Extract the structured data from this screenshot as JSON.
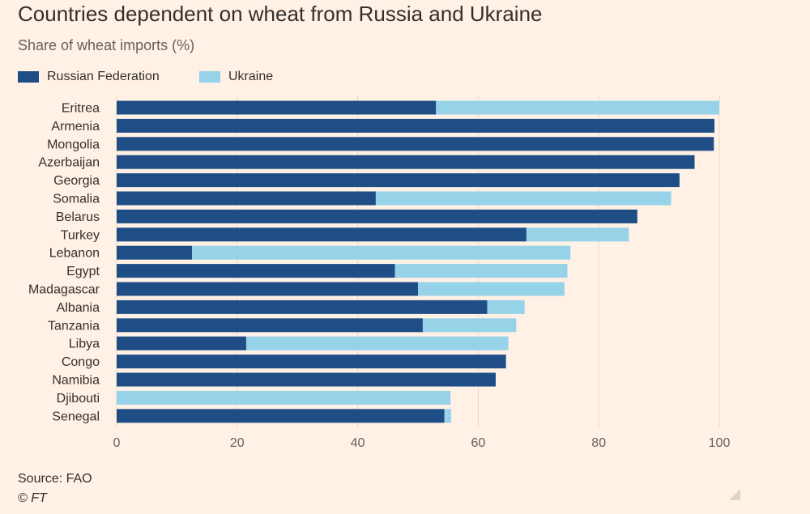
{
  "header": {
    "title": "Countries dependent on wheat from Russia and Ukraine",
    "subtitle": "Share of wheat imports (%)"
  },
  "legend": {
    "items": [
      {
        "label": "Russian Federation",
        "color": "#1f4e87"
      },
      {
        "label": "Ukraine",
        "color": "#96d3e9"
      }
    ]
  },
  "footer": {
    "source": "Source: FAO",
    "credit": "© FT"
  },
  "colors": {
    "background": "#fff1e5",
    "russia": "#1f4e87",
    "ukraine": "#96d3e9",
    "gridline": "#e6d9ce"
  },
  "chart_data": {
    "type": "bar",
    "orientation": "horizontal",
    "stacked": true,
    "title": "Countries dependent on wheat from Russia and Ukraine",
    "subtitle": "Share of wheat imports (%)",
    "xlabel": "",
    "ylabel": "",
    "xlim": [
      0,
      100
    ],
    "xticks": [
      0,
      20,
      40,
      60,
      80,
      100
    ],
    "grid": true,
    "legend_position": "top-left",
    "categories": [
      "Eritrea",
      "Armenia",
      "Mongolia",
      "Azerbaijan",
      "Georgia",
      "Somalia",
      "Belarus",
      "Turkey",
      "Lebanon",
      "Egypt",
      "Madagascar",
      "Albania",
      "Tanzania",
      "Libya",
      "Congo",
      "Namibia",
      "Djibouti",
      "Senegal"
    ],
    "series": [
      {
        "name": "Russian Federation",
        "values": [
          53.0,
          99.2,
          99.1,
          95.9,
          93.4,
          43.0,
          86.4,
          68.0,
          12.5,
          46.2,
          50.0,
          61.5,
          50.8,
          21.5,
          64.6,
          62.9,
          0.0,
          54.4
        ]
      },
      {
        "name": "Ukraine",
        "values": [
          47.0,
          0.0,
          0.0,
          0.0,
          0.0,
          49.0,
          0.0,
          17.0,
          62.8,
          28.6,
          24.3,
          6.2,
          15.5,
          43.5,
          0.0,
          0.0,
          55.4,
          1.1
        ]
      }
    ]
  }
}
